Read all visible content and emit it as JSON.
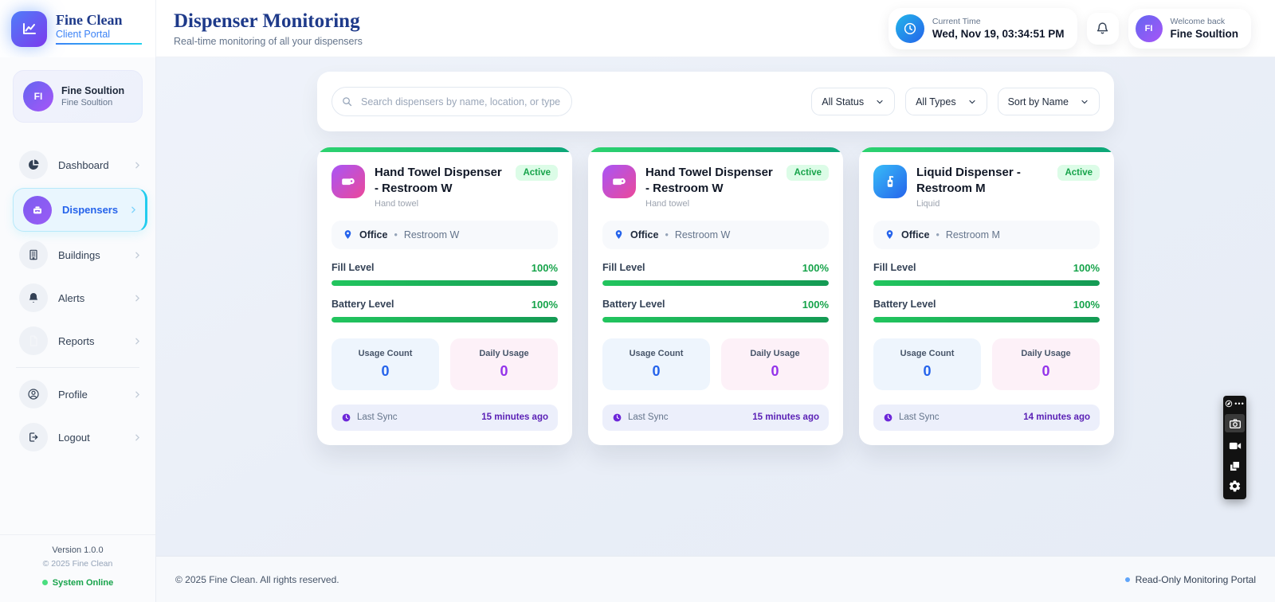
{
  "brand": {
    "name": "Fine Clean",
    "portal": "Client Portal"
  },
  "header": {
    "title": "Dispenser Monitoring",
    "subtitle": "Real-time monitoring of all your dispensers",
    "time_label": "Current Time",
    "time_value": "Wed, Nov 19, 03:34:51 PM",
    "welcome_label": "Welcome back",
    "welcome_name": "Fine Soultion",
    "avatar_initials": "FI"
  },
  "sidebar": {
    "user": {
      "initials": "FI",
      "name": "Fine Soultion",
      "subtitle": "Fine Soultion"
    },
    "items": [
      {
        "label": "Dashboard"
      },
      {
        "label": "Dispensers"
      },
      {
        "label": "Buildings"
      },
      {
        "label": "Alerts"
      },
      {
        "label": "Reports"
      },
      {
        "label": "Profile"
      },
      {
        "label": "Logout"
      }
    ],
    "version": "Version 1.0.0",
    "copyright": "© 2025 Fine Clean",
    "status": "System Online"
  },
  "filters": {
    "search_placeholder": "Search dispensers by name, location, or type...",
    "status_filter": "All Status",
    "type_filter": "All Types",
    "sort_filter": "Sort by Name"
  },
  "labels": {
    "fill_level": "Fill Level",
    "battery_level": "Battery Level",
    "usage_count": "Usage Count",
    "daily_usage": "Daily Usage",
    "last_sync": "Last Sync"
  },
  "cards": [
    {
      "title": "Hand Towel Dispenser - Restroom W",
      "type": "Hand towel",
      "status": "Active",
      "building": "Office",
      "separator": "•",
      "room": "Restroom W",
      "fill_value": "100%",
      "fill_pct": 100,
      "battery_value": "100%",
      "battery_pct": 100,
      "usage_count": "0",
      "daily_usage": "0",
      "last_sync": "15 minutes ago"
    },
    {
      "title": "Hand Towel Dispenser - Restroom W",
      "type": "Hand towel",
      "status": "Active",
      "building": "Office",
      "separator": "•",
      "room": "Restroom W",
      "fill_value": "100%",
      "fill_pct": 100,
      "battery_value": "100%",
      "battery_pct": 100,
      "usage_count": "0",
      "daily_usage": "0",
      "last_sync": "15 minutes ago"
    },
    {
      "title": "Liquid Dispenser - Restroom M",
      "type": "Liquid",
      "status": "Active",
      "building": "Office",
      "separator": "•",
      "room": "Restroom M",
      "fill_value": "100%",
      "fill_pct": 100,
      "battery_value": "100%",
      "battery_pct": 100,
      "usage_count": "0",
      "daily_usage": "0",
      "last_sync": "14 minutes ago"
    }
  ],
  "footer": {
    "copyright": "© 2025 Fine Clean. All rights reserved.",
    "portal_note": "Read-Only Monitoring Portal"
  },
  "colors": {
    "brand_navy": "#1e3a8a",
    "accent_blue": "#2563eb",
    "accent_purple": "#9333ea",
    "success_green": "#16a34a",
    "sync_purple": "#5b21b6",
    "online_green": "#4ade80"
  }
}
